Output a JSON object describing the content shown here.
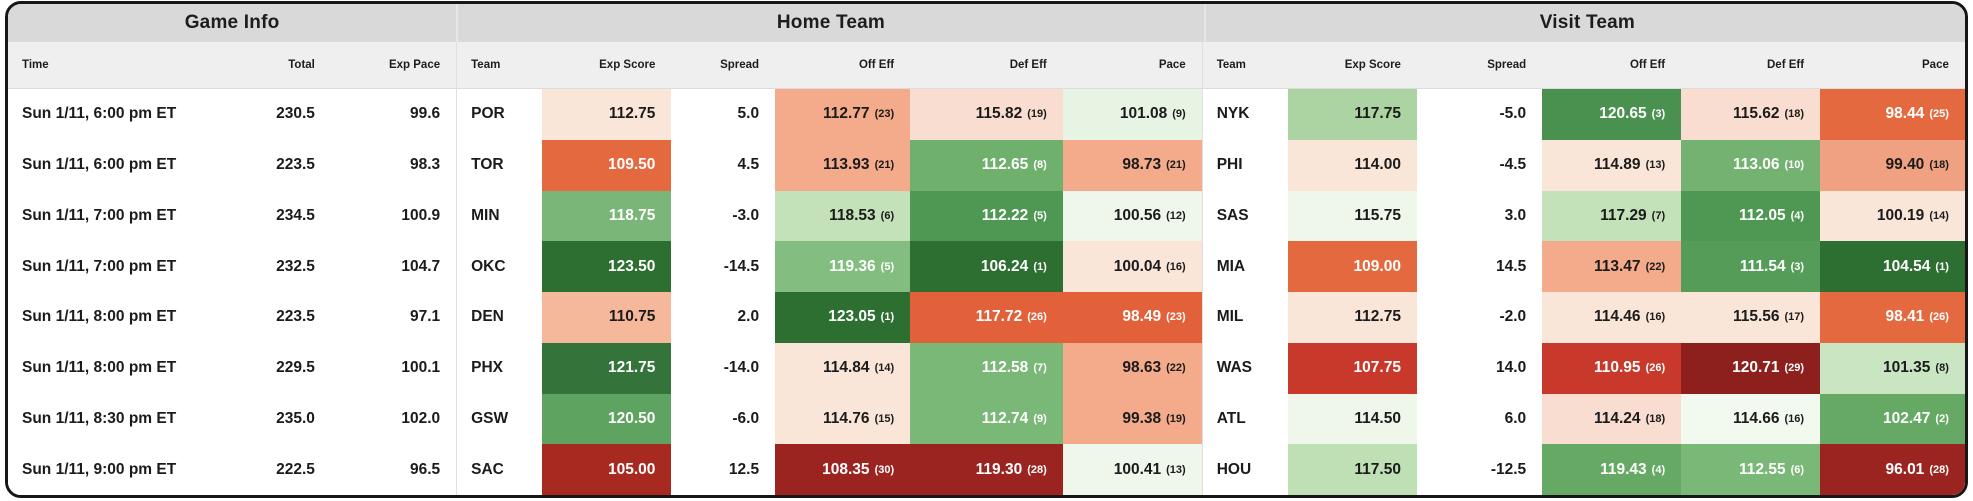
{
  "groups": [
    "Game Info",
    "Home Team",
    "Visit Team"
  ],
  "columns": {
    "time": "Time",
    "total": "Total",
    "exp_pace": "Exp Pace",
    "team": "Team",
    "exp_score": "Exp Score",
    "spread": "Spread",
    "off_eff": "Off Eff",
    "def_eff": "Def Eff",
    "pace": "Pace"
  },
  "heatmap_colors": {
    "strong_green": "#2d6e31",
    "mid_green": "#7ab877",
    "pale_green": "#c3e2ba",
    "faint_green": "#eef7ea",
    "faint_pink": "#fae6d9",
    "salmon": "#f3ab8b",
    "orange": "#e5693f",
    "red": "#c9392b",
    "dark_red": "#9c2420"
  },
  "rows": [
    {
      "time": "Sun 1/11, 6:00 pm ET",
      "total": "230.5",
      "exp_pace": "99.6",
      "home": {
        "team": "POR",
        "exp_score": {
          "v": "112.75",
          "bg": "#fae6d9",
          "fg": "dark"
        },
        "spread": "5.0",
        "off_eff": {
          "v": "112.77",
          "rank": "23",
          "bg": "#f3ab8b",
          "fg": "dark"
        },
        "def_eff": {
          "v": "115.82",
          "rank": "19",
          "bg": "#f8ddd0",
          "fg": "dark"
        },
        "pace": {
          "v": "101.08",
          "rank": "9",
          "bg": "#e8f4e3",
          "fg": "dark"
        }
      },
      "visit": {
        "team": "NYK",
        "exp_score": {
          "v": "117.75",
          "bg": "#abd4a2",
          "fg": "dark"
        },
        "spread": "-5.0",
        "off_eff": {
          "v": "120.65",
          "rank": "3",
          "bg": "#4a9150",
          "fg": "white"
        },
        "def_eff": {
          "v": "115.62",
          "rank": "18",
          "bg": "#f8ddd0",
          "fg": "dark"
        },
        "pace": {
          "v": "98.44",
          "rank": "25",
          "bg": "#e5693f",
          "fg": "white"
        }
      }
    },
    {
      "time": "Sun 1/11, 6:00 pm ET",
      "total": "223.5",
      "exp_pace": "98.3",
      "home": {
        "team": "TOR",
        "exp_score": {
          "v": "109.50",
          "bg": "#e5693f",
          "fg": "white"
        },
        "spread": "4.5",
        "off_eff": {
          "v": "113.93",
          "rank": "21",
          "bg": "#f3ab8b",
          "fg": "dark"
        },
        "def_eff": {
          "v": "112.65",
          "rank": "8",
          "bg": "#6fb06d",
          "fg": "white"
        },
        "pace": {
          "v": "98.73",
          "rank": "21",
          "bg": "#f3ab8b",
          "fg": "dark"
        }
      },
      "visit": {
        "team": "PHI",
        "exp_score": {
          "v": "114.00",
          "bg": "#fae6d9",
          "fg": "dark"
        },
        "spread": "-4.5",
        "off_eff": {
          "v": "114.89",
          "rank": "13",
          "bg": "#fae6d9",
          "fg": "dark"
        },
        "def_eff": {
          "v": "113.06",
          "rank": "10",
          "bg": "#74b271",
          "fg": "white"
        },
        "pace": {
          "v": "99.40",
          "rank": "18",
          "bg": "#f0a181",
          "fg": "dark"
        }
      }
    },
    {
      "time": "Sun 1/11, 7:00 pm ET",
      "total": "234.5",
      "exp_pace": "100.9",
      "home": {
        "team": "MIN",
        "exp_score": {
          "v": "118.75",
          "bg": "#79b677",
          "fg": "white"
        },
        "spread": "-3.0",
        "off_eff": {
          "v": "118.53",
          "rank": "6",
          "bg": "#c3e2ba",
          "fg": "dark"
        },
        "def_eff": {
          "v": "112.22",
          "rank": "5",
          "bg": "#4f9853",
          "fg": "white"
        },
        "pace": {
          "v": "100.56",
          "rank": "12",
          "bg": "#eef7ea",
          "fg": "dark"
        }
      },
      "visit": {
        "team": "SAS",
        "exp_score": {
          "v": "115.75",
          "bg": "#eef7ea",
          "fg": "dark"
        },
        "spread": "3.0",
        "off_eff": {
          "v": "117.29",
          "rank": "7",
          "bg": "#c3e2ba",
          "fg": "dark"
        },
        "def_eff": {
          "v": "112.05",
          "rank": "4",
          "bg": "#4f9853",
          "fg": "white"
        },
        "pace": {
          "v": "100.19",
          "rank": "14",
          "bg": "#fae6d9",
          "fg": "dark"
        }
      }
    },
    {
      "time": "Sun 1/11, 7:00 pm ET",
      "total": "232.5",
      "exp_pace": "104.7",
      "home": {
        "team": "OKC",
        "exp_score": {
          "v": "123.50",
          "bg": "#2d6e31",
          "fg": "white"
        },
        "spread": "-14.5",
        "off_eff": {
          "v": "119.36",
          "rank": "5",
          "bg": "#84bd80",
          "fg": "white"
        },
        "def_eff": {
          "v": "106.24",
          "rank": "1",
          "bg": "#2d6e31",
          "fg": "white"
        },
        "pace": {
          "v": "100.04",
          "rank": "16",
          "bg": "#fae6d9",
          "fg": "dark"
        }
      },
      "visit": {
        "team": "MIA",
        "exp_score": {
          "v": "109.00",
          "bg": "#e5693f",
          "fg": "white"
        },
        "spread": "14.5",
        "off_eff": {
          "v": "113.47",
          "rank": "22",
          "bg": "#f3ab8b",
          "fg": "dark"
        },
        "def_eff": {
          "v": "111.54",
          "rank": "3",
          "bg": "#559c59",
          "fg": "white"
        },
        "pace": {
          "v": "104.54",
          "rank": "1",
          "bg": "#2d6e31",
          "fg": "white"
        }
      }
    },
    {
      "time": "Sun 1/11, 8:00 pm ET",
      "total": "223.5",
      "exp_pace": "97.1",
      "home": {
        "team": "DEN",
        "exp_score": {
          "v": "110.75",
          "bg": "#f5b89a",
          "fg": "dark"
        },
        "spread": "2.0",
        "off_eff": {
          "v": "123.05",
          "rank": "1",
          "bg": "#2d6e31",
          "fg": "white"
        },
        "def_eff": {
          "v": "117.72",
          "rank": "26",
          "bg": "#e2603a",
          "fg": "white"
        },
        "pace": {
          "v": "98.49",
          "rank": "23",
          "bg": "#e2603a",
          "fg": "white"
        }
      },
      "visit": {
        "team": "MIL",
        "exp_score": {
          "v": "112.75",
          "bg": "#fae6d9",
          "fg": "dark"
        },
        "spread": "-2.0",
        "off_eff": {
          "v": "114.46",
          "rank": "16",
          "bg": "#fae6d9",
          "fg": "dark"
        },
        "def_eff": {
          "v": "115.56",
          "rank": "17",
          "bg": "#fae6d9",
          "fg": "dark"
        },
        "pace": {
          "v": "98.41",
          "rank": "26",
          "bg": "#e5693f",
          "fg": "white"
        }
      }
    },
    {
      "time": "Sun 1/11, 8:00 pm ET",
      "total": "229.5",
      "exp_pace": "100.1",
      "home": {
        "team": "PHX",
        "exp_score": {
          "v": "121.75",
          "bg": "#34743a",
          "fg": "white"
        },
        "spread": "-14.0",
        "off_eff": {
          "v": "114.84",
          "rank": "14",
          "bg": "#fae6d9",
          "fg": "dark"
        },
        "def_eff": {
          "v": "112.58",
          "rank": "7",
          "bg": "#7ab877",
          "fg": "white"
        },
        "pace": {
          "v": "98.63",
          "rank": "22",
          "bg": "#f3ab8b",
          "fg": "dark"
        }
      },
      "visit": {
        "team": "WAS",
        "exp_score": {
          "v": "107.75",
          "bg": "#c9392b",
          "fg": "white"
        },
        "spread": "14.0",
        "off_eff": {
          "v": "110.95",
          "rank": "26",
          "bg": "#c9392b",
          "fg": "white"
        },
        "def_eff": {
          "v": "120.71",
          "rank": "29",
          "bg": "#8d201d",
          "fg": "white"
        },
        "pace": {
          "v": "101.35",
          "rank": "8",
          "bg": "#c9e5c1",
          "fg": "dark"
        }
      }
    },
    {
      "time": "Sun 1/11, 8:30 pm ET",
      "total": "235.0",
      "exp_pace": "102.0",
      "home": {
        "team": "GSW",
        "exp_score": {
          "v": "120.50",
          "bg": "#5ea460",
          "fg": "white"
        },
        "spread": "-6.0",
        "off_eff": {
          "v": "114.76",
          "rank": "15",
          "bg": "#fae6d9",
          "fg": "dark"
        },
        "def_eff": {
          "v": "112.74",
          "rank": "9",
          "bg": "#7ab877",
          "fg": "white"
        },
        "pace": {
          "v": "99.38",
          "rank": "19",
          "bg": "#f3ab8b",
          "fg": "dark"
        }
      },
      "visit": {
        "team": "ATL",
        "exp_score": {
          "v": "114.50",
          "bg": "#eef7ea",
          "fg": "dark"
        },
        "spread": "6.0",
        "off_eff": {
          "v": "114.24",
          "rank": "18",
          "bg": "#f8ddd0",
          "fg": "dark"
        },
        "def_eff": {
          "v": "114.66",
          "rank": "16",
          "bg": "#f2f9ef",
          "fg": "dark"
        },
        "pace": {
          "v": "102.47",
          "rank": "2",
          "bg": "#66a965",
          "fg": "white"
        }
      }
    },
    {
      "time": "Sun 1/11, 9:00 pm ET",
      "total": "222.5",
      "exp_pace": "96.5",
      "home": {
        "team": "SAC",
        "exp_score": {
          "v": "105.00",
          "bg": "#a8291f",
          "fg": "white"
        },
        "spread": "12.5",
        "off_eff": {
          "v": "108.35",
          "rank": "30",
          "bg": "#9c2420",
          "fg": "white"
        },
        "def_eff": {
          "v": "119.30",
          "rank": "28",
          "bg": "#9c2420",
          "fg": "white"
        },
        "pace": {
          "v": "100.41",
          "rank": "13",
          "bg": "#eef7ea",
          "fg": "dark"
        }
      },
      "visit": {
        "team": "HOU",
        "exp_score": {
          "v": "117.50",
          "bg": "#bfe0b5",
          "fg": "dark"
        },
        "spread": "-12.5",
        "off_eff": {
          "v": "119.43",
          "rank": "4",
          "bg": "#66a965",
          "fg": "white"
        },
        "def_eff": {
          "v": "112.55",
          "rank": "6",
          "bg": "#7ab877",
          "fg": "white"
        },
        "pace": {
          "v": "96.01",
          "rank": "28",
          "bg": "#9c2420",
          "fg": "white"
        }
      }
    }
  ]
}
